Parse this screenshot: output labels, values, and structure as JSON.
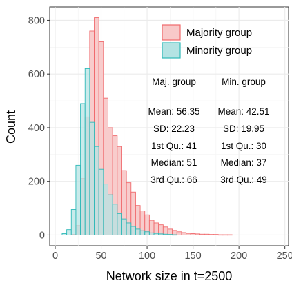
{
  "chart_data": {
    "type": "bar",
    "subtype": "overlaid-histogram",
    "xlabel": "Network size in t=2500",
    "ylabel": "Count",
    "xlim": [
      0,
      250
    ],
    "ylim": [
      0,
      850
    ],
    "x_ticks": [
      "0",
      "50",
      "100",
      "150",
      "200",
      "250"
    ],
    "y_ticks": [
      "0",
      "200",
      "400",
      "600",
      "800"
    ],
    "grid": true,
    "bin_width": 5,
    "legend_position": "top-right",
    "series": [
      {
        "name": "Majority group",
        "fill": "#f8c9c9",
        "stroke": "#f0696c",
        "bins": [
          {
            "x": 20,
            "y": 2
          },
          {
            "x": 25,
            "y": 35
          },
          {
            "x": 30,
            "y": 210
          },
          {
            "x": 35,
            "y": 440
          },
          {
            "x": 40,
            "y": 760
          },
          {
            "x": 45,
            "y": 810
          },
          {
            "x": 50,
            "y": 720
          },
          {
            "x": 55,
            "y": 510
          },
          {
            "x": 60,
            "y": 400
          },
          {
            "x": 65,
            "y": 370
          },
          {
            "x": 70,
            "y": 330
          },
          {
            "x": 75,
            "y": 240
          },
          {
            "x": 80,
            "y": 195
          },
          {
            "x": 85,
            "y": 160
          },
          {
            "x": 90,
            "y": 110
          },
          {
            "x": 95,
            "y": 90
          },
          {
            "x": 100,
            "y": 75
          },
          {
            "x": 105,
            "y": 55
          },
          {
            "x": 110,
            "y": 45
          },
          {
            "x": 115,
            "y": 38
          },
          {
            "x": 120,
            "y": 30
          },
          {
            "x": 125,
            "y": 22
          },
          {
            "x": 130,
            "y": 17
          },
          {
            "x": 135,
            "y": 12
          },
          {
            "x": 140,
            "y": 9
          },
          {
            "x": 145,
            "y": 6
          },
          {
            "x": 150,
            "y": 5
          },
          {
            "x": 155,
            "y": 4
          },
          {
            "x": 160,
            "y": 3
          },
          {
            "x": 165,
            "y": 3
          },
          {
            "x": 170,
            "y": 2
          },
          {
            "x": 175,
            "y": 2
          },
          {
            "x": 180,
            "y": 1
          },
          {
            "x": 185,
            "y": 1
          },
          {
            "x": 190,
            "y": 1
          }
        ]
      },
      {
        "name": "Minority group",
        "fill": "#b4e3e3",
        "stroke": "#2fb9b8",
        "bins": [
          {
            "x": 10,
            "y": 5
          },
          {
            "x": 15,
            "y": 20
          },
          {
            "x": 20,
            "y": 95
          },
          {
            "x": 25,
            "y": 260
          },
          {
            "x": 30,
            "y": 490
          },
          {
            "x": 35,
            "y": 620
          },
          {
            "x": 40,
            "y": 420
          },
          {
            "x": 45,
            "y": 330
          },
          {
            "x": 50,
            "y": 245
          },
          {
            "x": 55,
            "y": 190
          },
          {
            "x": 60,
            "y": 150
          },
          {
            "x": 65,
            "y": 115
          },
          {
            "x": 70,
            "y": 80
          },
          {
            "x": 75,
            "y": 60
          },
          {
            "x": 80,
            "y": 45
          },
          {
            "x": 85,
            "y": 32
          },
          {
            "x": 90,
            "y": 22
          },
          {
            "x": 95,
            "y": 16
          },
          {
            "x": 100,
            "y": 12
          },
          {
            "x": 105,
            "y": 8
          },
          {
            "x": 110,
            "y": 6
          },
          {
            "x": 115,
            "y": 4
          },
          {
            "x": 120,
            "y": 3
          },
          {
            "x": 125,
            "y": 2
          },
          {
            "x": 130,
            "y": 1
          }
        ]
      }
    ],
    "stats_table": {
      "headers": [
        "Maj. group",
        "Min. group"
      ],
      "rows": [
        [
          "Mean: 56.35",
          "Mean: 42.51"
        ],
        [
          "SD: 22.23",
          "SD: 19.95"
        ],
        [
          "1st Qu.: 41",
          "1st Qu.: 30"
        ],
        [
          "Median: 51",
          "Median: 37"
        ],
        [
          "3rd Qu.: 66",
          "3rd Qu.: 49"
        ]
      ]
    }
  }
}
